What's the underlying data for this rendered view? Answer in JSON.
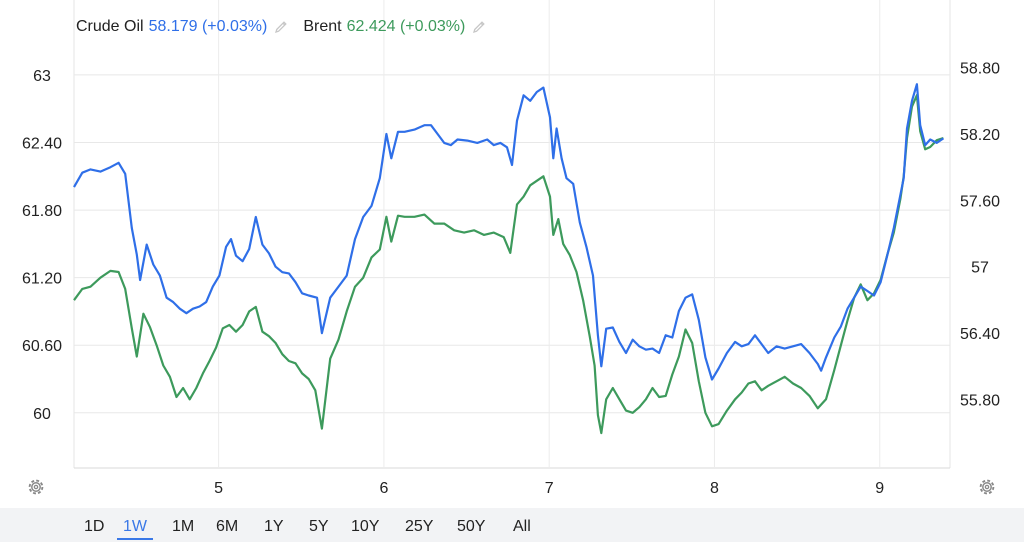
{
  "legend": [
    {
      "name": "Crude Oil",
      "value": "58.179 (+0.03%)",
      "color": "#2f6fe8",
      "icon": "pencil-icon"
    },
    {
      "name": "Brent",
      "value": "62.424 (+0.03%)",
      "color": "#3d9a5c",
      "icon": "pencil-icon"
    }
  ],
  "toolbar": {
    "ranges": [
      "1D",
      "1W",
      "1M",
      "6M",
      "1Y",
      "5Y",
      "10Y",
      "25Y",
      "50Y",
      "All"
    ],
    "active": "1W",
    "settings_icon": "gear-icon"
  },
  "chart_data": {
    "type": "line",
    "x_range": [
      4.0,
      9.3
    ],
    "x_ticks": [
      {
        "value": 4.875,
        "label": "5"
      },
      {
        "value": 5.875,
        "label": "6"
      },
      {
        "value": 6.875,
        "label": "7"
      },
      {
        "value": 7.875,
        "label": "8"
      },
      {
        "value": 8.875,
        "label": "9"
      }
    ],
    "left_axis": {
      "range": [
        59.51,
        63.31
      ],
      "ticks": [
        "60",
        "60.60",
        "61.20",
        "61.80",
        "62.40",
        "63"
      ],
      "tick_values": [
        60,
        60.6,
        61.2,
        61.8,
        62.4,
        63
      ]
    },
    "right_axis": {
      "range": [
        55.18,
        59.05
      ],
      "ticks": [
        "55.80",
        "56.40",
        "57",
        "57.60",
        "58.20",
        "58.80"
      ],
      "tick_values": [
        55.8,
        56.4,
        57,
        57.6,
        58.2,
        58.8
      ]
    },
    "grid": true,
    "legend_position": "top-left",
    "series": [
      {
        "name": "Crude Oil",
        "axis": "right",
        "color": "#2f6fe8",
        "points": [
          [
            4.0,
            57.72
          ],
          [
            4.05,
            57.85
          ],
          [
            4.1,
            57.88
          ],
          [
            4.16,
            57.86
          ],
          [
            4.22,
            57.9
          ],
          [
            4.27,
            57.94
          ],
          [
            4.31,
            57.84
          ],
          [
            4.35,
            57.35
          ],
          [
            4.38,
            57.11
          ],
          [
            4.4,
            56.88
          ],
          [
            4.44,
            57.2
          ],
          [
            4.48,
            57.02
          ],
          [
            4.52,
            56.92
          ],
          [
            4.56,
            56.72
          ],
          [
            4.6,
            56.68
          ],
          [
            4.64,
            56.62
          ],
          [
            4.68,
            56.58
          ],
          [
            4.72,
            56.62
          ],
          [
            4.76,
            56.64
          ],
          [
            4.8,
            56.68
          ],
          [
            4.84,
            56.82
          ],
          [
            4.88,
            56.92
          ],
          [
            4.92,
            57.18
          ],
          [
            4.95,
            57.25
          ],
          [
            4.98,
            57.1
          ],
          [
            5.02,
            57.05
          ],
          [
            5.06,
            57.16
          ],
          [
            5.1,
            57.45
          ],
          [
            5.14,
            57.2
          ],
          [
            5.18,
            57.12
          ],
          [
            5.22,
            57.0
          ],
          [
            5.26,
            56.95
          ],
          [
            5.3,
            56.94
          ],
          [
            5.34,
            56.86
          ],
          [
            5.38,
            56.76
          ],
          [
            5.42,
            56.74
          ],
          [
            5.47,
            56.72
          ],
          [
            5.5,
            56.4
          ],
          [
            5.55,
            56.72
          ],
          [
            5.6,
            56.82
          ],
          [
            5.65,
            56.92
          ],
          [
            5.7,
            57.25
          ],
          [
            5.75,
            57.45
          ],
          [
            5.8,
            57.55
          ],
          [
            5.85,
            57.8
          ],
          [
            5.89,
            58.2
          ],
          [
            5.92,
            57.98
          ],
          [
            5.96,
            58.22
          ],
          [
            6.0,
            58.22
          ],
          [
            6.06,
            58.24
          ],
          [
            6.12,
            58.28
          ],
          [
            6.16,
            58.28
          ],
          [
            6.2,
            58.2
          ],
          [
            6.24,
            58.12
          ],
          [
            6.28,
            58.1
          ],
          [
            6.32,
            58.15
          ],
          [
            6.38,
            58.14
          ],
          [
            6.44,
            58.12
          ],
          [
            6.5,
            58.15
          ],
          [
            6.54,
            58.1
          ],
          [
            6.58,
            58.12
          ],
          [
            6.62,
            58.08
          ],
          [
            6.65,
            57.92
          ],
          [
            6.68,
            58.32
          ],
          [
            6.72,
            58.55
          ],
          [
            6.76,
            58.5
          ],
          [
            6.8,
            58.58
          ],
          [
            6.84,
            58.62
          ],
          [
            6.88,
            58.35
          ],
          [
            6.9,
            57.98
          ],
          [
            6.92,
            58.25
          ],
          [
            6.95,
            57.98
          ],
          [
            6.98,
            57.8
          ],
          [
            7.02,
            57.75
          ],
          [
            7.06,
            57.4
          ],
          [
            7.1,
            57.18
          ],
          [
            7.14,
            56.92
          ],
          [
            7.17,
            56.38
          ],
          [
            7.19,
            56.1
          ],
          [
            7.22,
            56.44
          ],
          [
            7.26,
            56.45
          ],
          [
            7.3,
            56.32
          ],
          [
            7.34,
            56.22
          ],
          [
            7.38,
            56.34
          ],
          [
            7.42,
            56.28
          ],
          [
            7.46,
            56.25
          ],
          [
            7.5,
            56.26
          ],
          [
            7.54,
            56.22
          ],
          [
            7.58,
            56.38
          ],
          [
            7.62,
            56.36
          ],
          [
            7.66,
            56.6
          ],
          [
            7.7,
            56.72
          ],
          [
            7.74,
            56.75
          ],
          [
            7.78,
            56.52
          ],
          [
            7.82,
            56.18
          ],
          [
            7.86,
            55.98
          ],
          [
            7.9,
            56.08
          ],
          [
            7.95,
            56.22
          ],
          [
            8.0,
            56.32
          ],
          [
            8.04,
            56.28
          ],
          [
            8.08,
            56.3
          ],
          [
            8.12,
            56.38
          ],
          [
            8.16,
            56.3
          ],
          [
            8.2,
            56.22
          ],
          [
            8.25,
            56.28
          ],
          [
            8.3,
            56.26
          ],
          [
            8.35,
            56.28
          ],
          [
            8.4,
            56.3
          ],
          [
            8.45,
            56.22
          ],
          [
            8.5,
            56.12
          ],
          [
            8.52,
            56.06
          ],
          [
            8.55,
            56.18
          ],
          [
            8.6,
            56.36
          ],
          [
            8.64,
            56.46
          ],
          [
            8.68,
            56.62
          ],
          [
            8.72,
            56.72
          ],
          [
            8.76,
            56.82
          ],
          [
            8.8,
            56.78
          ],
          [
            8.84,
            56.74
          ],
          [
            8.88,
            56.86
          ],
          [
            8.92,
            57.1
          ],
          [
            8.96,
            57.35
          ],
          [
            9.0,
            57.65
          ],
          [
            9.02,
            57.8
          ],
          [
            9.04,
            58.25
          ],
          [
            9.07,
            58.5
          ],
          [
            9.1,
            58.65
          ],
          [
            9.12,
            58.28
          ],
          [
            9.15,
            58.1
          ],
          [
            9.18,
            58.15
          ],
          [
            9.22,
            58.12
          ],
          [
            9.26,
            58.16
          ]
        ]
      },
      {
        "name": "Brent",
        "axis": "left",
        "color": "#3d9a5c",
        "points": [
          [
            4.0,
            61.0
          ],
          [
            4.05,
            61.1
          ],
          [
            4.1,
            61.12
          ],
          [
            4.16,
            61.2
          ],
          [
            4.22,
            61.26
          ],
          [
            4.27,
            61.25
          ],
          [
            4.31,
            61.1
          ],
          [
            4.35,
            60.75
          ],
          [
            4.38,
            60.5
          ],
          [
            4.42,
            60.88
          ],
          [
            4.46,
            60.76
          ],
          [
            4.5,
            60.6
          ],
          [
            4.54,
            60.42
          ],
          [
            4.58,
            60.32
          ],
          [
            4.62,
            60.14
          ],
          [
            4.66,
            60.22
          ],
          [
            4.7,
            60.12
          ],
          [
            4.74,
            60.22
          ],
          [
            4.78,
            60.35
          ],
          [
            4.82,
            60.46
          ],
          [
            4.86,
            60.58
          ],
          [
            4.9,
            60.75
          ],
          [
            4.94,
            60.78
          ],
          [
            4.98,
            60.72
          ],
          [
            5.02,
            60.78
          ],
          [
            5.06,
            60.9
          ],
          [
            5.1,
            60.94
          ],
          [
            5.14,
            60.72
          ],
          [
            5.18,
            60.68
          ],
          [
            5.22,
            60.62
          ],
          [
            5.26,
            60.52
          ],
          [
            5.3,
            60.46
          ],
          [
            5.34,
            60.44
          ],
          [
            5.38,
            60.35
          ],
          [
            5.42,
            60.3
          ],
          [
            5.46,
            60.2
          ],
          [
            5.5,
            59.86
          ],
          [
            5.55,
            60.48
          ],
          [
            5.6,
            60.65
          ],
          [
            5.65,
            60.9
          ],
          [
            5.7,
            61.12
          ],
          [
            5.75,
            61.2
          ],
          [
            5.8,
            61.38
          ],
          [
            5.85,
            61.45
          ],
          [
            5.89,
            61.74
          ],
          [
            5.92,
            61.52
          ],
          [
            5.96,
            61.75
          ],
          [
            6.0,
            61.74
          ],
          [
            6.06,
            61.74
          ],
          [
            6.12,
            61.76
          ],
          [
            6.18,
            61.68
          ],
          [
            6.24,
            61.68
          ],
          [
            6.3,
            61.62
          ],
          [
            6.36,
            61.6
          ],
          [
            6.42,
            61.62
          ],
          [
            6.48,
            61.58
          ],
          [
            6.54,
            61.6
          ],
          [
            6.6,
            61.56
          ],
          [
            6.64,
            61.42
          ],
          [
            6.68,
            61.85
          ],
          [
            6.72,
            61.92
          ],
          [
            6.76,
            62.02
          ],
          [
            6.8,
            62.06
          ],
          [
            6.84,
            62.1
          ],
          [
            6.88,
            61.92
          ],
          [
            6.9,
            61.58
          ],
          [
            6.93,
            61.72
          ],
          [
            6.96,
            61.5
          ],
          [
            7.0,
            61.4
          ],
          [
            7.04,
            61.25
          ],
          [
            7.08,
            61.0
          ],
          [
            7.12,
            60.68
          ],
          [
            7.15,
            60.42
          ],
          [
            7.17,
            59.98
          ],
          [
            7.19,
            59.82
          ],
          [
            7.22,
            60.12
          ],
          [
            7.26,
            60.22
          ],
          [
            7.3,
            60.12
          ],
          [
            7.34,
            60.02
          ],
          [
            7.38,
            60.0
          ],
          [
            7.42,
            60.05
          ],
          [
            7.46,
            60.12
          ],
          [
            7.5,
            60.22
          ],
          [
            7.54,
            60.14
          ],
          [
            7.58,
            60.15
          ],
          [
            7.62,
            60.34
          ],
          [
            7.66,
            60.5
          ],
          [
            7.7,
            60.74
          ],
          [
            7.74,
            60.62
          ],
          [
            7.78,
            60.28
          ],
          [
            7.82,
            60.0
          ],
          [
            7.86,
            59.88
          ],
          [
            7.9,
            59.9
          ],
          [
            7.95,
            60.02
          ],
          [
            8.0,
            60.12
          ],
          [
            8.04,
            60.18
          ],
          [
            8.08,
            60.26
          ],
          [
            8.12,
            60.28
          ],
          [
            8.16,
            60.2
          ],
          [
            8.2,
            60.24
          ],
          [
            8.25,
            60.28
          ],
          [
            8.3,
            60.32
          ],
          [
            8.35,
            60.26
          ],
          [
            8.4,
            60.22
          ],
          [
            8.45,
            60.15
          ],
          [
            8.5,
            60.04
          ],
          [
            8.55,
            60.12
          ],
          [
            8.6,
            60.38
          ],
          [
            8.64,
            60.6
          ],
          [
            8.68,
            60.82
          ],
          [
            8.72,
            61.02
          ],
          [
            8.76,
            61.14
          ],
          [
            8.8,
            61.0
          ],
          [
            8.84,
            61.06
          ],
          [
            8.88,
            61.18
          ],
          [
            8.92,
            61.4
          ],
          [
            8.96,
            61.6
          ],
          [
            9.0,
            61.9
          ],
          [
            9.02,
            62.1
          ],
          [
            9.04,
            62.44
          ],
          [
            9.07,
            62.72
          ],
          [
            9.1,
            62.82
          ],
          [
            9.12,
            62.5
          ],
          [
            9.15,
            62.34
          ],
          [
            9.18,
            62.36
          ],
          [
            9.22,
            62.42
          ],
          [
            9.26,
            62.44
          ]
        ]
      }
    ]
  }
}
